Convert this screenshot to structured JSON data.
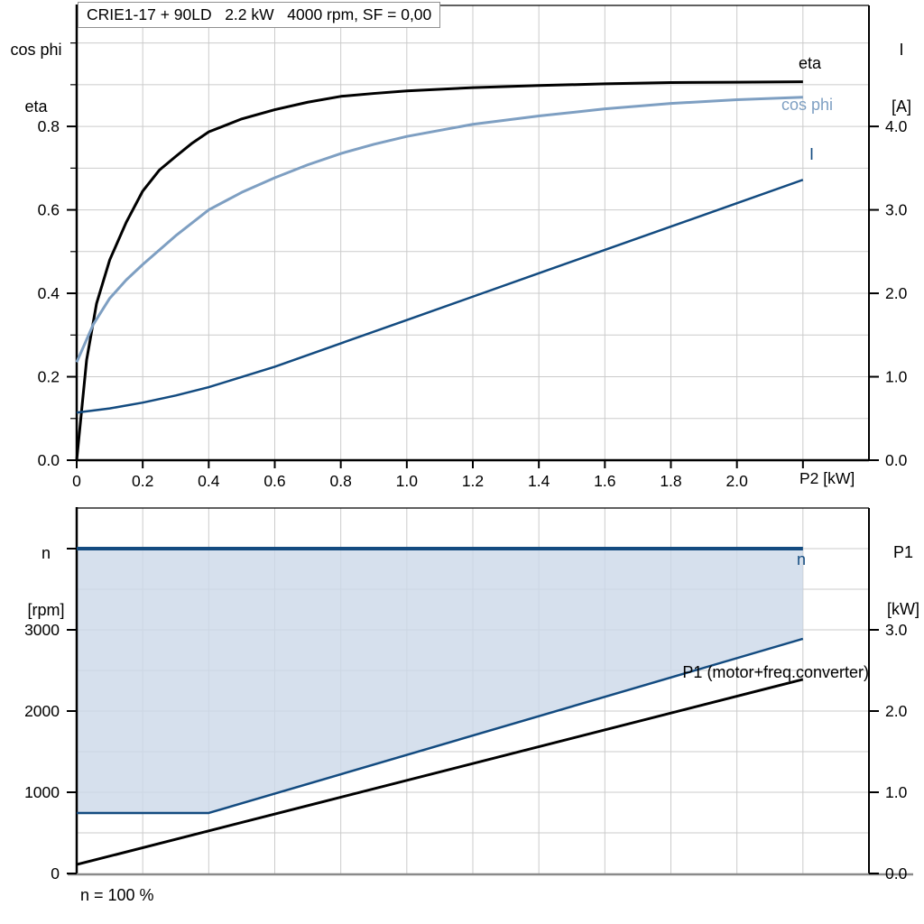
{
  "title_box": {
    "text": "CRIE1-17 + 90LD   2.2 kW   4000 rpm, SF = 0,00"
  },
  "colors": {
    "black": "#000000",
    "dark_blue": "#134b80",
    "light_blue": "#7e9fc2",
    "area_fill": "#ccd8e8",
    "grid": "#cbcbcb",
    "frame": "#000000",
    "axis_gray": "#8a8a8a"
  },
  "chart_data": [
    {
      "id": "top",
      "type": "line",
      "title": "CRIE1-17 + 90LD   2.2 kW   4000 rpm, SF = 0,00",
      "x": {
        "label": "P2 [kW]",
        "min": 0,
        "max": 2.4,
        "grid_step": 0.2,
        "grid_max": 2.2,
        "ticks": [
          {
            "v": 0,
            "t": "0"
          },
          {
            "v": 0.2,
            "t": "0.2"
          },
          {
            "v": 0.4,
            "t": "0.4"
          },
          {
            "v": 0.6,
            "t": "0.6"
          },
          {
            "v": 0.8,
            "t": "0.8"
          },
          {
            "v": 1.0,
            "t": "1.0"
          },
          {
            "v": 1.2,
            "t": "1.2"
          },
          {
            "v": 1.4,
            "t": "1.4"
          },
          {
            "v": 1.6,
            "t": "1.6"
          },
          {
            "v": 1.8,
            "t": "1.8"
          },
          {
            "v": 2.0,
            "t": "2.0"
          },
          {
            "v": 2.2,
            "t": ""
          }
        ]
      },
      "y_left": {
        "header": [
          "cos phi",
          "eta"
        ],
        "min": 0,
        "max": 1.09,
        "grid_step": 0.1,
        "grid_max": 1.0,
        "minor_step": 0.1,
        "ticks": [
          {
            "v": 0,
            "t": "0.0"
          },
          {
            "v": 0.2,
            "t": "0.2"
          },
          {
            "v": 0.4,
            "t": "0.4"
          },
          {
            "v": 0.6,
            "t": "0.6"
          },
          {
            "v": 0.8,
            "t": "0.8"
          }
        ]
      },
      "y_right": {
        "header": [
          "I",
          "[A]"
        ],
        "min": 0,
        "max": 5.45,
        "ticks": [
          {
            "v": 0,
            "t": "0.0"
          },
          {
            "v": 1,
            "t": "1.0"
          },
          {
            "v": 2,
            "t": "2.0"
          },
          {
            "v": 3,
            "t": "3.0"
          },
          {
            "v": 4,
            "t": "4.0"
          }
        ]
      },
      "series": [
        {
          "name": "eta",
          "axis": "left",
          "color": "black",
          "width": 3,
          "points": [
            [
              0,
              0
            ],
            [
              0.03,
              0.24
            ],
            [
              0.06,
              0.375
            ],
            [
              0.1,
              0.48
            ],
            [
              0.15,
              0.57
            ],
            [
              0.2,
              0.645
            ],
            [
              0.25,
              0.695
            ],
            [
              0.3,
              0.728
            ],
            [
              0.35,
              0.76
            ],
            [
              0.4,
              0.787
            ],
            [
              0.5,
              0.818
            ],
            [
              0.6,
              0.84
            ],
            [
              0.7,
              0.858
            ],
            [
              0.8,
              0.872
            ],
            [
              0.9,
              0.879
            ],
            [
              1.0,
              0.885
            ],
            [
              1.2,
              0.893
            ],
            [
              1.4,
              0.898
            ],
            [
              1.6,
              0.902
            ],
            [
              1.8,
              0.905
            ],
            [
              2.0,
              0.906
            ],
            [
              2.2,
              0.907
            ]
          ]
        },
        {
          "name": "cos phi",
          "axis": "left",
          "color": "light_blue",
          "width": 3,
          "points": [
            [
              0,
              0.235
            ],
            [
              0.05,
              0.325
            ],
            [
              0.1,
              0.388
            ],
            [
              0.15,
              0.432
            ],
            [
              0.2,
              0.469
            ],
            [
              0.3,
              0.538
            ],
            [
              0.4,
              0.6
            ],
            [
              0.5,
              0.642
            ],
            [
              0.6,
              0.677
            ],
            [
              0.7,
              0.708
            ],
            [
              0.8,
              0.735
            ],
            [
              0.9,
              0.757
            ],
            [
              1.0,
              0.776
            ],
            [
              1.2,
              0.805
            ],
            [
              1.4,
              0.825
            ],
            [
              1.6,
              0.842
            ],
            [
              1.8,
              0.855
            ],
            [
              2.0,
              0.864
            ],
            [
              2.2,
              0.87
            ]
          ]
        },
        {
          "name": "I",
          "axis": "right",
          "color": "dark_blue",
          "width": 2.5,
          "points": [
            [
              0,
              0.57
            ],
            [
              0.1,
              0.62
            ],
            [
              0.2,
              0.69
            ],
            [
              0.3,
              0.775
            ],
            [
              0.4,
              0.875
            ],
            [
              0.6,
              1.12
            ],
            [
              0.8,
              1.4
            ],
            [
              1.0,
              1.68
            ],
            [
              1.2,
              1.96
            ],
            [
              1.4,
              2.24
            ],
            [
              1.6,
              2.52
            ],
            [
              1.8,
              2.8
            ],
            [
              2.0,
              3.08
            ],
            [
              2.2,
              3.36
            ]
          ]
        }
      ]
    },
    {
      "id": "bottom",
      "type": "line",
      "x": {
        "label": "",
        "min": 0,
        "max": 2.4,
        "grid_step": 0.2,
        "grid_max": 2.2,
        "ticks": []
      },
      "y_left": {
        "header": [
          "n",
          "[rpm]"
        ],
        "min": 0,
        "max": 4500,
        "grid_step": 500,
        "grid_max": 4000,
        "ticks": [
          {
            "v": 0,
            "t": "0"
          },
          {
            "v": 1000,
            "t": "1000"
          },
          {
            "v": 2000,
            "t": "2000"
          },
          {
            "v": 3000,
            "t": "3000"
          },
          {
            "v": 4000,
            "t": ""
          }
        ]
      },
      "y_right": {
        "header": [
          "P1",
          "[kW]"
        ],
        "min": 0,
        "max": 4.5,
        "ticks": [
          {
            "v": 0,
            "t": "0.0"
          },
          {
            "v": 1,
            "t": "1.0"
          },
          {
            "v": 2,
            "t": "2.0"
          },
          {
            "v": 3,
            "t": "3.0"
          }
        ]
      },
      "area": {
        "name": "speed-range-area",
        "color": "area_fill",
        "upper": 0,
        "lower": 1,
        "opacity": 0.8
      },
      "series": [
        {
          "name": "n",
          "axis": "left",
          "color": "dark_blue",
          "width": 4,
          "points": [
            [
              0,
              4000
            ],
            [
              2.2,
              4000
            ]
          ]
        },
        {
          "name": "n min boundary",
          "axis": "left",
          "color": "dark_blue",
          "width": 2.5,
          "points": [
            [
              0,
              745
            ],
            [
              0.4,
              745
            ],
            [
              2.2,
              2890
            ]
          ]
        },
        {
          "name": "P1 (motor+freq.converter)",
          "axis": "right",
          "color": "black",
          "width": 3,
          "points": [
            [
              0,
              0.11
            ],
            [
              2.2,
              2.39
            ]
          ]
        }
      ],
      "footnote": "n = 100 %"
    }
  ]
}
